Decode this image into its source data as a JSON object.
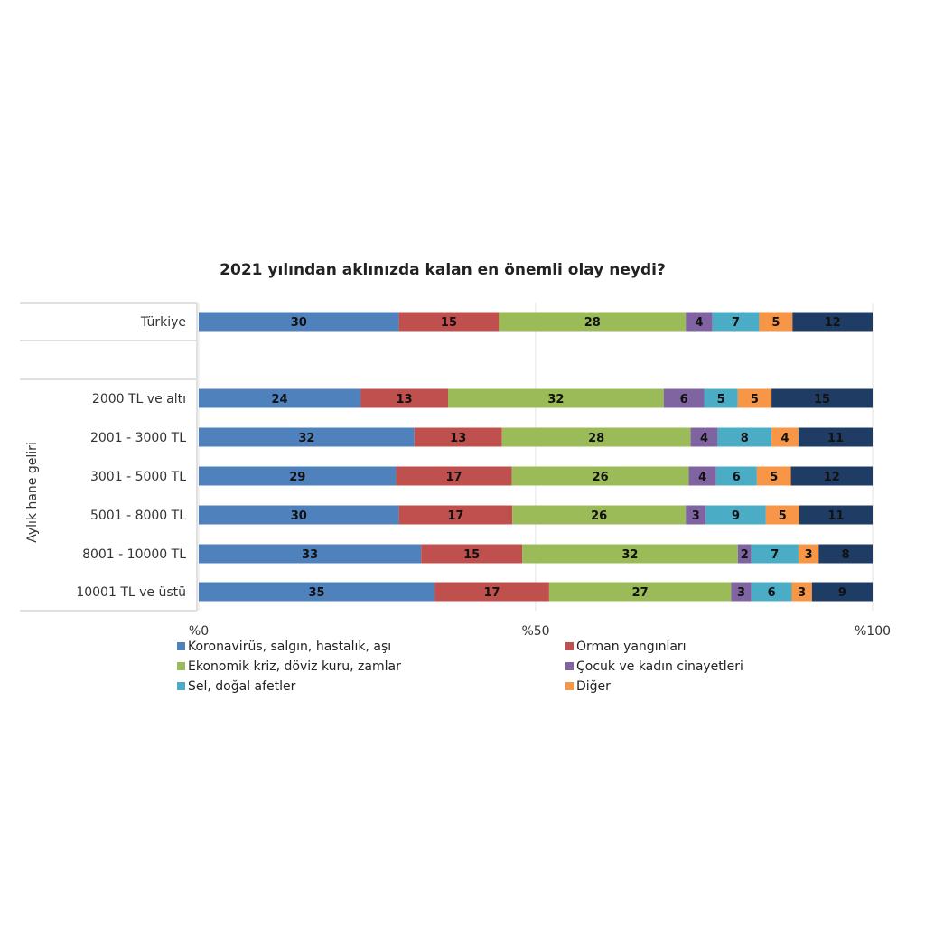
{
  "chart_data": {
    "type": "bar",
    "orientation": "horizontal",
    "stacked": "percent",
    "title": "2021 yılından aklınızda kalan en önemli olay neydi?",
    "group_label": "Aylık hane geliri",
    "categories": [
      "Türkiye",
      "",
      "2000 TL ve altı",
      "2001 - 3000 TL",
      "3001 - 5000 TL",
      "5001 - 8000 TL",
      "8001 - 10000 TL",
      "10001 TL ve üstü"
    ],
    "xticks": [
      "%0",
      "%50",
      "%100"
    ],
    "xlim": [
      0,
      100
    ],
    "grid": true,
    "legend_placement": "bottom",
    "series": [
      {
        "name": "Koronavirüs, salgın, hastalık, aşı",
        "color": "#4f81bd",
        "values": [
          30,
          null,
          24,
          32,
          29,
          30,
          33,
          35
        ]
      },
      {
        "name": "Orman yangınları",
        "color": "#c0504d",
        "values": [
          15,
          null,
          13,
          13,
          17,
          17,
          15,
          17
        ]
      },
      {
        "name": "Ekonomik kriz, döviz kuru, zamlar",
        "color": "#9bbb59",
        "values": [
          28,
          null,
          32,
          28,
          26,
          26,
          32,
          27
        ]
      },
      {
        "name": "Çocuk ve kadın cinayetleri",
        "color": "#8064a2",
        "values": [
          4,
          null,
          6,
          4,
          4,
          3,
          2,
          3
        ]
      },
      {
        "name": "Sel, doğal afetler",
        "color": "#4bacc6",
        "values": [
          7,
          null,
          5,
          8,
          6,
          9,
          7,
          6
        ]
      },
      {
        "name": "Diğer",
        "color": "#f79646",
        "values": [
          5,
          null,
          5,
          4,
          5,
          5,
          3,
          3
        ]
      },
      {
        "color": "#1f3d64",
        "values": [
          12,
          null,
          15,
          11,
          12,
          11,
          8,
          9
        ]
      }
    ]
  }
}
